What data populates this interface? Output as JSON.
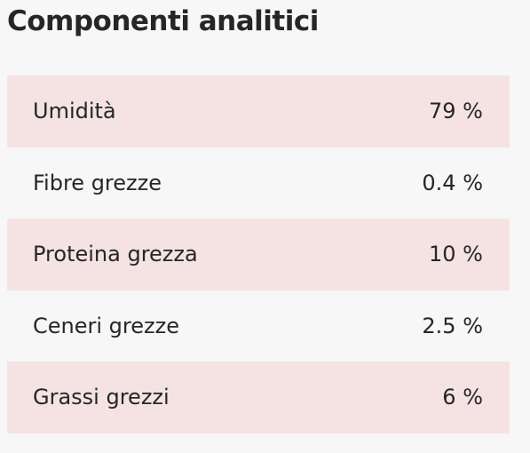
{
  "title": "Componenti analitici",
  "rows": [
    {
      "label": "Umidità",
      "value": "79 %"
    },
    {
      "label": "Fibre grezze",
      "value": "0.4 %"
    },
    {
      "label": "Proteina grezza",
      "value": "10 %"
    },
    {
      "label": "Ceneri grezze",
      "value": "2.5 %"
    },
    {
      "label": "Grassi grezzi",
      "value": "6 %"
    }
  ],
  "colors": {
    "background": "#f7f7f7",
    "row_highlight": "#f4e3e2",
    "text": "#262626"
  }
}
